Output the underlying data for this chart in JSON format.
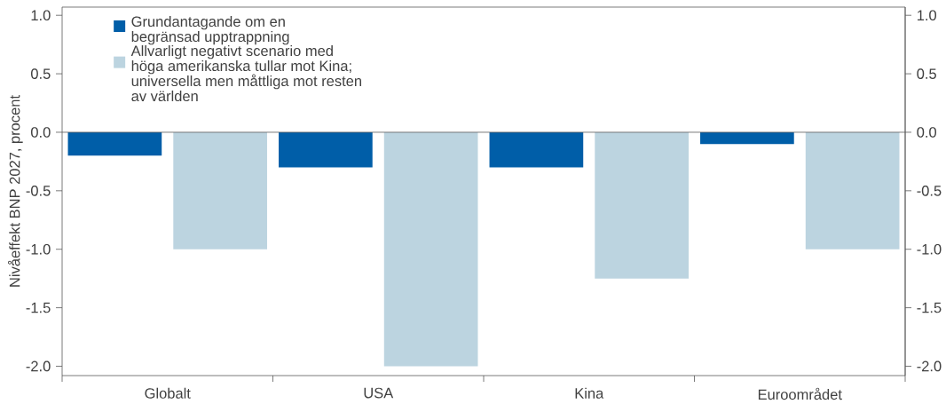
{
  "chart_data": {
    "type": "bar",
    "ylabel": "Nivåeffekt BNP 2027, procent",
    "categories": [
      "Globalt",
      "USA",
      "Kina",
      "Euroområdet"
    ],
    "series": [
      {
        "name": "Grundantagande om en begränsad upptrappning",
        "color": "#005ea8",
        "values": [
          -0.2,
          -0.3,
          -0.3,
          -0.1
        ]
      },
      {
        "name": "Allvarligt negativt scenario med höga amerikanska tullar mot Kina; universella men måttliga mot resten av världen",
        "color": "#bcd4e0",
        "values": [
          -1.0,
          -2.0,
          -1.25,
          -1.0
        ]
      }
    ],
    "ylim": [
      -2.08,
      1.07
    ],
    "yticks": [
      {
        "value": -2,
        "label": "-2.0"
      },
      {
        "value": -1.5,
        "label": "-1.5"
      },
      {
        "value": -1,
        "label": "-1.0"
      },
      {
        "value": -0.5,
        "label": "-0.5"
      },
      {
        "value": 0,
        "label": "0.0"
      },
      {
        "value": 0.5,
        "label": "0.5"
      },
      {
        "value": 1,
        "label": "1.0"
      }
    ],
    "y2lim": [
      -2.08,
      1.07
    ],
    "y2ticks": [
      {
        "value": -2,
        "label": "-2.0"
      },
      {
        "value": -1.5,
        "label": "-1.5"
      },
      {
        "value": -1,
        "label": "-1.0"
      },
      {
        "value": -0.5,
        "label": "-0.5"
      },
      {
        "value": 0,
        "label": "0.0"
      },
      {
        "value": 0.5,
        "label": "0.5"
      },
      {
        "value": 1,
        "label": "1.0"
      }
    ],
    "ref_lines": [
      {
        "axis": "y",
        "value": 0,
        "color": "#595959"
      }
    ],
    "legend": "top left"
  }
}
